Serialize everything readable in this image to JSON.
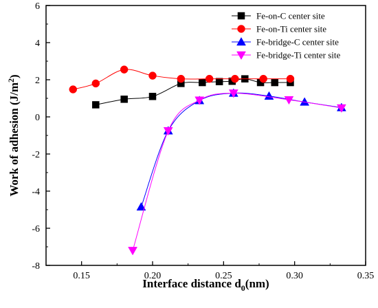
{
  "chart_data": {
    "type": "line",
    "xlabel_prefix": "Interface distance d",
    "xlabel_sub": "0",
    "xlabel_suffix": "(nm)",
    "ylabel_prefix": "Work of adhesion (J/m",
    "ylabel_sup": "2",
    "ylabel_suffix": ")",
    "xlim": [
      0.125,
      0.35
    ],
    "ylim": [
      -8,
      6
    ],
    "xticks": [
      0.15,
      0.2,
      0.25,
      0.3,
      0.35
    ],
    "xtick_labels": [
      "0.15",
      "0.20",
      "0.25",
      "0.30",
      "0.35"
    ],
    "yticks": [
      -8,
      -6,
      -4,
      -2,
      0,
      2,
      4,
      6
    ],
    "ytick_labels": [
      "-8",
      "-6",
      "-4",
      "-2",
      "0",
      "2",
      "4",
      "6"
    ],
    "legend_position": "top-right",
    "grid": false,
    "series": [
      {
        "name": "Fe-on-C center site",
        "marker": "square",
        "color": "#000000",
        "x": [
          0.16,
          0.18,
          0.2,
          0.22,
          0.235,
          0.247,
          0.256,
          0.265,
          0.276,
          0.286,
          0.297
        ],
        "y": [
          0.65,
          0.95,
          1.1,
          1.8,
          1.85,
          1.9,
          1.92,
          2.05,
          1.85,
          1.85,
          1.85
        ]
      },
      {
        "name": "Fe-on-Ti center site",
        "marker": "circle",
        "color": "#ff0000",
        "x": [
          0.144,
          0.16,
          0.18,
          0.2,
          0.22,
          0.24,
          0.258,
          0.278,
          0.297
        ],
        "y": [
          1.48,
          1.8,
          2.55,
          2.22,
          2.05,
          2.05,
          2.05,
          2.05,
          2.05
        ]
      },
      {
        "name": "Fe-bridge-C center site",
        "marker": "triangle-up",
        "color": "#0000ff",
        "x": [
          0.192,
          0.211,
          0.233,
          0.257,
          0.282,
          0.307,
          0.333
        ],
        "y": [
          -4.85,
          -0.75,
          0.88,
          1.28,
          1.12,
          0.8,
          0.5
        ]
      },
      {
        "name": "Fe-bridge-Ti center site",
        "marker": "triangle-down",
        "color": "#ff00ff",
        "x": [
          0.186,
          0.211,
          0.233,
          0.257,
          0.296,
          0.333
        ],
        "y": [
          -7.2,
          -0.75,
          0.9,
          1.28,
          0.92,
          0.48
        ]
      }
    ]
  }
}
